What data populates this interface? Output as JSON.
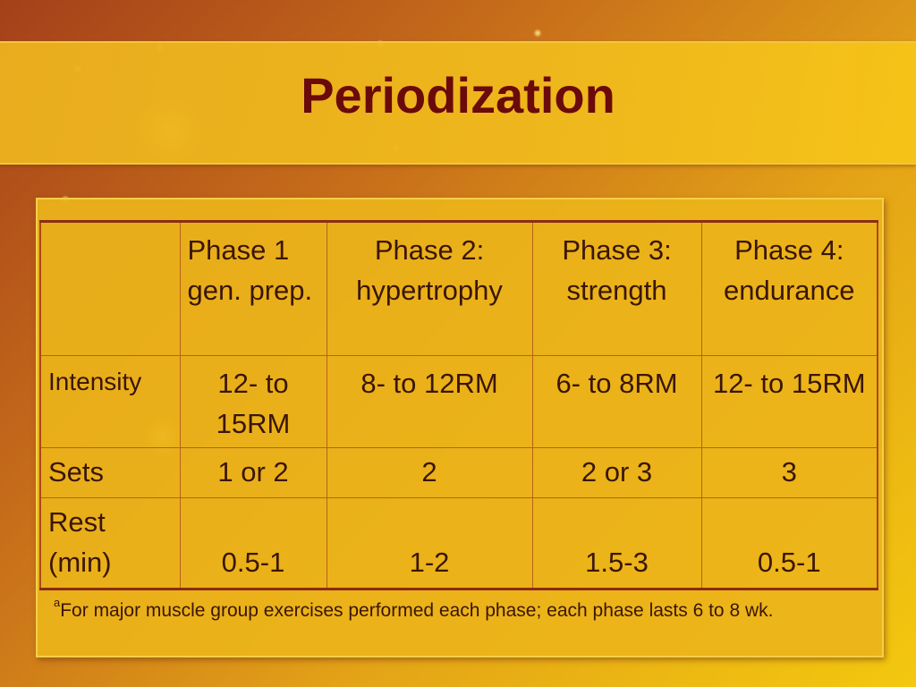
{
  "title": "Periodization",
  "table": {
    "header": {
      "corner": "",
      "phases": [
        "Phase 1 gen. prep.",
        "Phase 2: hypertrophy",
        "Phase 3: strength",
        "Phase 4: endurance"
      ]
    },
    "rows": [
      {
        "label": "Intensity",
        "values": [
          "12- to 15RM",
          "8- to 12RM",
          "6- to 8RM",
          "12- to 15RM"
        ]
      },
      {
        "label": "Sets",
        "values": [
          "1 or 2",
          "2",
          "2 or 3",
          "3"
        ]
      },
      {
        "label": "Rest (min)",
        "values": [
          "0.5-1",
          "1-2",
          "1.5-3",
          "0.5-1"
        ]
      }
    ]
  },
  "footnote": {
    "marker": "a",
    "text": "For major muscle group exercises performed each phase; each phase lasts 6 to 8 wk."
  },
  "colors": {
    "title": "#6b0a0a",
    "text": "#3a1606",
    "table_border": "#8a2d14"
  }
}
